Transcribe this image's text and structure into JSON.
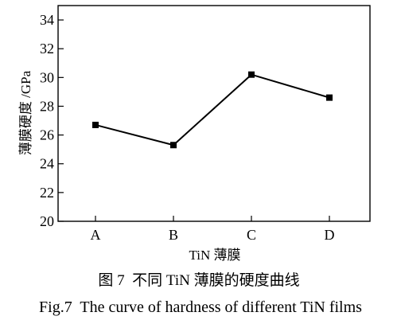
{
  "chart_data": {
    "type": "line",
    "categories": [
      "A",
      "B",
      "C",
      "D"
    ],
    "series": [
      {
        "values": [
          26.7,
          25.3,
          30.2,
          28.6
        ]
      }
    ],
    "xlabel": "TiN 薄膜",
    "ylabel": "薄膜硬度 /GPa",
    "ylim": [
      20,
      35
    ],
    "yticks": [
      20,
      22,
      24,
      26,
      28,
      30,
      32,
      34
    ],
    "grid": false,
    "marker": "square",
    "colors": {
      "line": "#000000",
      "marker": "#000000",
      "axis": "#000000"
    }
  },
  "caption": {
    "chinese": "图 7  不同 TiN 薄膜的硬度曲线",
    "english": "Fig.7  The curve of hardness of different TiN films"
  }
}
